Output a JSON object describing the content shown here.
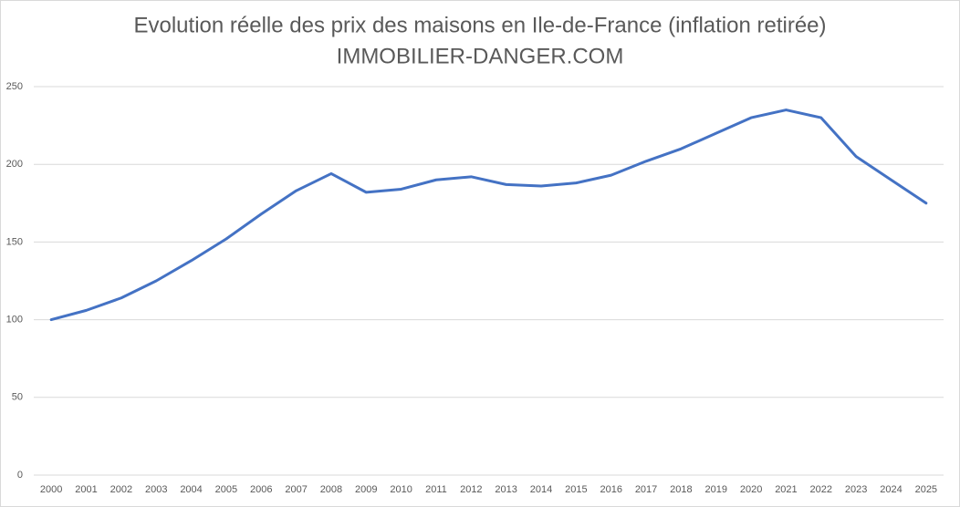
{
  "chart_data": {
    "type": "line",
    "title": "Evolution réelle des prix des maisons en Ile-de-France (inflation retirée)",
    "subtitle": "IMMOBILIER-DANGER.COM",
    "categories": [
      "2000",
      "2001",
      "2002",
      "2003",
      "2004",
      "2005",
      "2006",
      "2007",
      "2008",
      "2009",
      "2010",
      "2011",
      "2012",
      "2013",
      "2014",
      "2015",
      "2016",
      "2017",
      "2018",
      "2019",
      "2020",
      "2021",
      "2022",
      "2023",
      "2024",
      "2025"
    ],
    "values": [
      100,
      106,
      114,
      125,
      138,
      152,
      168,
      183,
      194,
      182,
      184,
      190,
      192,
      187,
      186,
      188,
      193,
      202,
      210,
      220,
      230,
      235,
      230,
      205,
      190,
      175
    ],
    "color": "#4472c4",
    "ylim": [
      0,
      250
    ],
    "yticks": [
      0,
      50,
      100,
      150,
      200,
      250
    ],
    "grid": true
  }
}
